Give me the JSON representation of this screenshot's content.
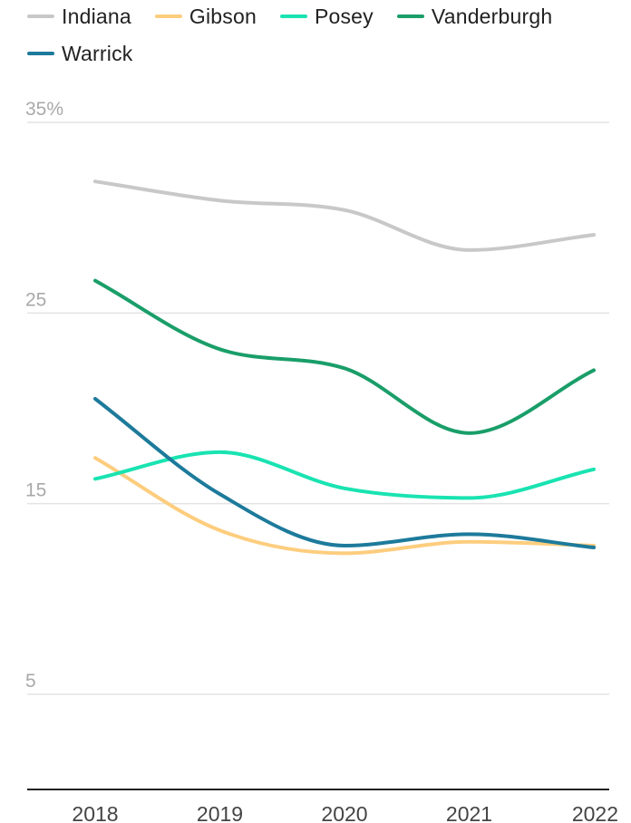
{
  "chart_data": {
    "type": "line",
    "x": [
      "2018",
      "2019",
      "2020",
      "2021",
      "2022"
    ],
    "y_ticks": [
      {
        "value": 35,
        "label": "35%"
      },
      {
        "value": 25,
        "label": "25"
      },
      {
        "value": 15,
        "label": "15"
      },
      {
        "value": 5,
        "label": "5"
      }
    ],
    "ylim": [
      0,
      35
    ],
    "grid": true,
    "legend": "top",
    "series": [
      {
        "name": "Indiana",
        "color": "#c8c8c8",
        "values": [
          31.9,
          30.9,
          30.4,
          28.3,
          29.1
        ]
      },
      {
        "name": "Gibson",
        "color": "#fdcd7e",
        "values": [
          17.4,
          13.6,
          12.4,
          13.0,
          12.8
        ]
      },
      {
        "name": "Posey",
        "color": "#19e3b1",
        "values": [
          16.3,
          17.7,
          15.8,
          15.3,
          16.8
        ]
      },
      {
        "name": "Vanderburgh",
        "color": "#1a9e69",
        "values": [
          26.7,
          23.1,
          22.1,
          18.7,
          22.0
        ]
      },
      {
        "name": "Warrick",
        "color": "#1d7a9b",
        "values": [
          20.5,
          15.5,
          12.8,
          13.4,
          12.7
        ]
      }
    ]
  }
}
